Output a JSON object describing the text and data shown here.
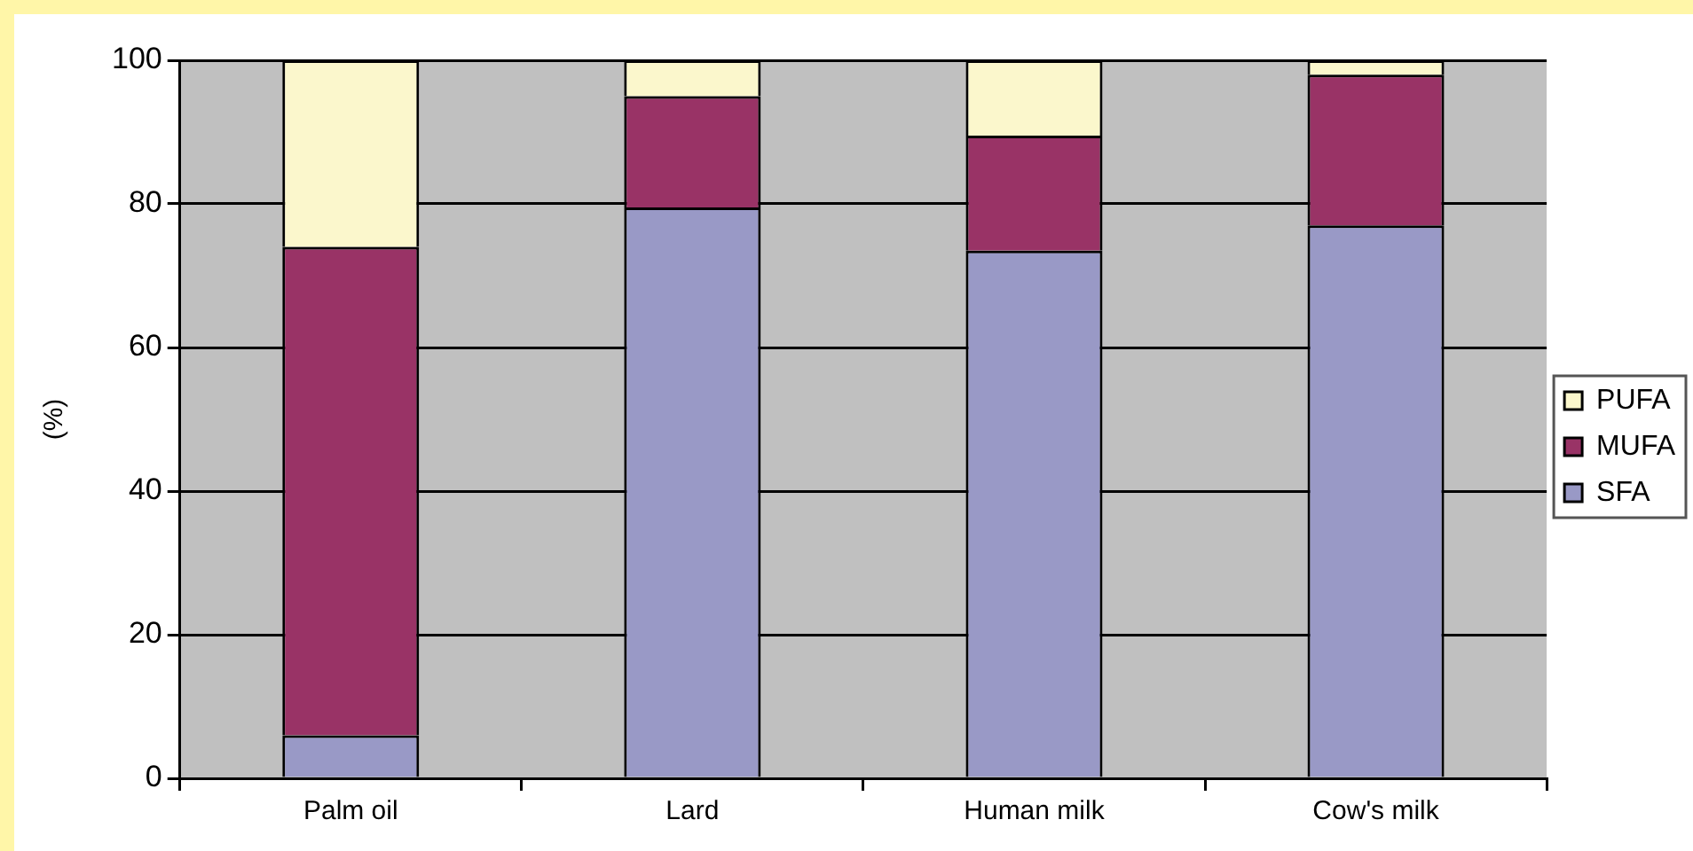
{
  "chart_data": {
    "type": "bar",
    "stacked": true,
    "ylabel": "(%)",
    "categories": [
      "Palm oil",
      "Lard",
      "Human milk",
      "Cow's milk"
    ],
    "series": [
      {
        "name": "SFA",
        "color": "#9999c6",
        "values": [
          6,
          79.5,
          73.5,
          77
        ]
      },
      {
        "name": "MUFA",
        "color": "#993366",
        "values": [
          68,
          15.5,
          16,
          21
        ]
      },
      {
        "name": "PUFA",
        "color": "#fbf7cc",
        "values": [
          26,
          5,
          10.5,
          2
        ]
      }
    ],
    "ylim": [
      0,
      100
    ],
    "yticks": [
      0,
      20,
      40,
      60,
      80,
      100
    ],
    "grid": "y",
    "legend": "right"
  }
}
